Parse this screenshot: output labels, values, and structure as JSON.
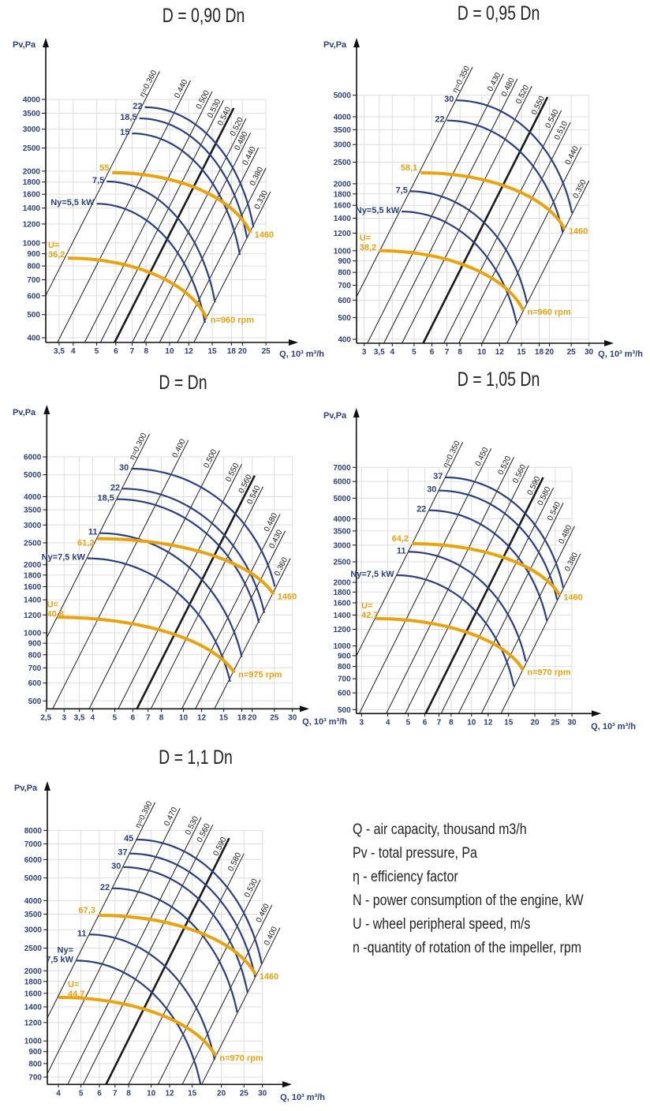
{
  "colors": {
    "power": "#2a3f80",
    "speed": "#eaa30e",
    "efficiency": "#1a1a1a",
    "tick_label": "#2d3f7a",
    "grid": "#dddddd",
    "axis": "#111111"
  },
  "legend": [
    "Q - air capacity, thousand m3/h",
    "Pv - total pressure, Pa",
    "η - efficiency factor",
    "N - power consumption of the engine, kW",
    "U - wheel peripheral speed, m/s",
    "n -quantity of rotation of the impeller, rpm"
  ],
  "chart_data": [
    {
      "type": "line",
      "title": "D = 0,90 Dn",
      "ylabel": "Pv,Pa",
      "xlabel": "Q, 10³ m³/h",
      "x_scale": "log",
      "y_scale": "log",
      "grid": true,
      "xlim": [
        3.5,
        25
      ],
      "ylim": [
        400,
        4000
      ],
      "x_ticks": [
        [
          3.5,
          "3,5"
        ],
        [
          4,
          "4"
        ],
        [
          5,
          "5"
        ],
        [
          6,
          "6"
        ],
        [
          7,
          "7"
        ],
        [
          8,
          "8"
        ],
        [
          10,
          "10"
        ],
        [
          12,
          "12"
        ],
        [
          15,
          "15"
        ],
        [
          18,
          "18"
        ],
        [
          20,
          "20"
        ],
        [
          25,
          "25"
        ]
      ],
      "y_ticks": [
        400,
        500,
        600,
        700,
        800,
        900,
        1000,
        1200,
        1400,
        1600,
        1800,
        2000,
        2500,
        3000,
        3500,
        4000
      ],
      "efficiency_lines": [
        {
          "label": "η=0.360",
          "top": [
            9.1,
            5250
          ]
        },
        {
          "label": "0.440",
          "top": [
            12.2,
            4800
          ]
        },
        {
          "label": "0.500",
          "top": [
            15.0,
            4320
          ]
        },
        {
          "label": "0.530",
          "top": [
            16.7,
            3970
          ]
        },
        {
          "label": "0.540",
          "top": [
            18.4,
            3680
          ],
          "bold": true
        },
        {
          "label": "0.520",
          "top": [
            20.7,
            3330
          ]
        },
        {
          "label": "0.480",
          "top": [
            21.6,
            2900
          ]
        },
        {
          "label": "0.440",
          "top": [
            23.3,
            2510
          ]
        },
        {
          "label": "0.380",
          "top": [
            25.0,
            2060
          ]
        },
        {
          "label": "0.330",
          "top": [
            26.1,
            1640
          ]
        }
      ],
      "power_curves": [
        {
          "label": [
            "Ny=5,5 kW"
          ],
          "from": [
            5.0,
            1460
          ],
          "to": [
            14.0,
            462
          ]
        },
        {
          "label": [
            "7,5"
          ],
          "from": [
            5.5,
            1810
          ],
          "to": [
            15.4,
            564
          ]
        },
        {
          "label": [
            "15"
          ],
          "from": [
            7.0,
            2880
          ],
          "to": [
            19.5,
            891
          ]
        },
        {
          "label": [
            "18,5"
          ],
          "from": [
            7.5,
            3330
          ],
          "to": [
            20.9,
            1045
          ]
        },
        {
          "label": [
            "22"
          ],
          "from": [
            7.9,
            3710
          ],
          "to": [
            22.2,
            1163
          ]
        }
      ],
      "speed_curves": [
        {
          "label": [
            "U=",
            "36,2"
          ],
          "rpm": "n=960 rpm",
          "from": [
            3.8,
            863
          ],
          "to": [
            14.2,
            484
          ]
        },
        {
          "label": [
            "55"
          ],
          "rpm": "1460",
          "from": [
            5.8,
            1970
          ],
          "to": [
            21.6,
            1102
          ]
        }
      ]
    },
    {
      "type": "line",
      "title": "D = 0,95 Dn",
      "ylabel": "Pv,Pa",
      "xlabel": "Q, 10³ m³/h",
      "x_scale": "log",
      "y_scale": "log",
      "grid": true,
      "xlim": [
        3,
        30
      ],
      "ylim": [
        400,
        5000
      ],
      "x_ticks": [
        [
          3,
          "3"
        ],
        [
          3.5,
          "3,5"
        ],
        [
          4,
          "4"
        ],
        [
          5,
          "5"
        ],
        [
          6,
          "6"
        ],
        [
          7,
          "7"
        ],
        [
          8,
          "8"
        ],
        [
          10,
          "10"
        ],
        [
          12,
          "12"
        ],
        [
          15,
          "15"
        ],
        [
          18,
          "18"
        ],
        [
          20,
          "20"
        ],
        [
          25,
          "25"
        ],
        [
          30,
          "30"
        ]
      ],
      "y_ticks": [
        400,
        500,
        600,
        700,
        800,
        900,
        1000,
        1200,
        1400,
        1600,
        1800,
        2000,
        2500,
        3000,
        3500,
        4000,
        5000
      ],
      "efficiency_lines": [
        {
          "label": "η=0.350",
          "top": [
            9.1,
            6690
          ]
        },
        {
          "label": "0.430",
          "top": [
            12.5,
            6250
          ]
        },
        {
          "label": "0.480",
          "top": [
            14.4,
            5920
          ]
        },
        {
          "label": "0.520",
          "top": [
            16.7,
            5490
          ]
        },
        {
          "label": "0.550",
          "top": [
            19.6,
            4900
          ],
          "bold": true
        },
        {
          "label": "0.540",
          "top": [
            22.6,
            4270
          ]
        },
        {
          "label": "0.510",
          "top": [
            24.8,
            3780
          ]
        },
        {
          "label": "0.440",
          "top": [
            27.7,
            2920
          ]
        },
        {
          "label": "0.350",
          "top": [
            30.0,
            2065
          ]
        }
      ],
      "power_curves": [
        {
          "label": [
            "Ny=5,5 kW"
          ],
          "from": [
            4.4,
            1500
          ],
          "to": [
            14.3,
            470
          ]
        },
        {
          "label": [
            "7,5"
          ],
          "from": [
            4.8,
            1850
          ],
          "to": [
            15.9,
            580
          ]
        },
        {
          "label": [
            "22"
          ],
          "from": [
            7.0,
            3850
          ],
          "to": [
            22.9,
            1210
          ]
        },
        {
          "label": [
            "30"
          ],
          "from": [
            7.7,
            4740
          ],
          "to": [
            25.2,
            1480
          ]
        }
      ],
      "speed_curves": [
        {
          "label": [
            "U=",
            "38,2"
          ],
          "rpm": "n=960 rpm",
          "from": [
            3.5,
            1000
          ],
          "to": [
            15.3,
            540
          ]
        },
        {
          "label": [
            "58,1"
          ],
          "rpm": "1460",
          "from": [
            5.35,
            2240
          ],
          "to": [
            23.4,
            1248
          ]
        }
      ]
    },
    {
      "type": "line",
      "title": "D = Dn",
      "ylabel": "Pv,Pa",
      "xlabel": "Q, 10³ m³/h",
      "x_scale": "log",
      "y_scale": "log",
      "grid": true,
      "xlim": [
        2.5,
        30
      ],
      "ylim": [
        500,
        6000
      ],
      "x_ticks": [
        [
          2.5,
          "2,5"
        ],
        [
          3,
          "3"
        ],
        [
          3.5,
          "3,5"
        ],
        [
          4,
          "4"
        ],
        [
          5,
          "5"
        ],
        [
          6,
          "6"
        ],
        [
          7,
          "7"
        ],
        [
          8,
          "8"
        ],
        [
          10,
          "10"
        ],
        [
          12,
          "12"
        ],
        [
          15,
          "15"
        ],
        [
          18,
          "18"
        ],
        [
          20,
          "20"
        ],
        [
          25,
          "25"
        ],
        [
          30,
          "30"
        ]
      ],
      "y_ticks": [
        500,
        600,
        700,
        800,
        900,
        1000,
        1200,
        1400,
        1600,
        1800,
        2000,
        2500,
        3000,
        3500,
        4000,
        5000,
        6000
      ],
      "efficiency_lines": [
        {
          "label": "η=0.300",
          "top": [
            7.1,
            7570
          ]
        },
        {
          "label": "0.400",
          "top": [
            10.5,
            7120
          ]
        },
        {
          "label": "0.500",
          "top": [
            14.4,
            6410
          ]
        },
        {
          "label": "0.550",
          "top": [
            18.0,
            5570
          ]
        },
        {
          "label": "0.560",
          "top": [
            20.5,
            4960
          ],
          "bold": true
        },
        {
          "label": "0.540",
          "top": [
            22.3,
            4430
          ]
        },
        {
          "label": "0.480",
          "top": [
            26.5,
            3350
          ]
        },
        {
          "label": "0.430",
          "top": [
            27.9,
            2825
          ]
        },
        {
          "label": "0.360",
          "top": [
            29.4,
            2135
          ]
        }
      ],
      "power_curves": [
        {
          "label": [
            "Ny=7,5 kW"
          ],
          "from": [
            3.8,
            2135
          ],
          "to": [
            16.0,
            608
          ]
        },
        {
          "label": [
            "11"
          ],
          "from": [
            4.3,
            2760
          ],
          "to": [
            18.0,
            782
          ]
        },
        {
          "label": [
            "18,5"
          ],
          "from": [
            5.1,
            3900
          ],
          "to": [
            21.4,
            1107
          ]
        },
        {
          "label": [
            "22"
          ],
          "from": [
            5.4,
            4340
          ],
          "to": [
            22.6,
            1225
          ]
        },
        {
          "label": [
            "30"
          ],
          "from": [
            5.9,
            5320
          ],
          "to": [
            25.1,
            1604
          ]
        }
      ],
      "speed_curves": [
        {
          "label": [
            "U=",
            "40,8"
          ],
          "rpm": "n=975 rpm",
          "from": [
            2.8,
            1172
          ],
          "to": [
            16.7,
            666
          ]
        },
        {
          "label": [
            "61,2"
          ],
          "rpm": "1460",
          "from": [
            4.2,
            2609
          ],
          "to": [
            24.8,
            1479
          ]
        }
      ]
    },
    {
      "type": "line",
      "title": "D = 1,05 Dn",
      "ylabel": "Pv,Pa",
      "xlabel": "Q, 10³ m³/h",
      "x_scale": "log",
      "y_scale": "log",
      "grid": true,
      "xlim": [
        3,
        30
      ],
      "ylim": [
        500,
        7000
      ],
      "x_ticks": [
        [
          3,
          "3"
        ],
        [
          4,
          "4"
        ],
        [
          5,
          "5"
        ],
        [
          6,
          "6"
        ],
        [
          7,
          "7"
        ],
        [
          8,
          "8"
        ],
        [
          10,
          "10"
        ],
        [
          12,
          "12"
        ],
        [
          15,
          "15"
        ],
        [
          20,
          "20"
        ],
        [
          25,
          "25"
        ],
        [
          30,
          "30"
        ]
      ],
      "y_ticks": [
        500,
        600,
        700,
        800,
        900,
        1000,
        1200,
        1400,
        1600,
        1800,
        2000,
        2500,
        3000,
        3500,
        4000,
        5000,
        6000,
        7000
      ],
      "efficiency_lines": [
        {
          "label": "η=0.350",
          "top": [
            9.1,
            9240
          ]
        },
        {
          "label": "0.450",
          "top": [
            12.4,
            8600
          ]
        },
        {
          "label": "0.520",
          "top": [
            15.9,
            7820
          ]
        },
        {
          "label": "0.560",
          "top": [
            18.7,
            7140
          ]
        },
        {
          "label": "0.590",
          "top": [
            21.9,
            6270
          ],
          "bold": true
        },
        {
          "label": "0.580",
          "top": [
            24.5,
            5600
          ]
        },
        {
          "label": "0.540",
          "top": [
            27.3,
            4750
          ]
        },
        {
          "label": "0.480",
          "top": [
            30.9,
            3690
          ]
        },
        {
          "label": "0.380",
          "top": [
            33.0,
            2733
          ]
        }
      ],
      "power_curves": [
        {
          "label": [
            "Ny=7,5 kW"
          ],
          "from": [
            4.4,
            2161
          ],
          "to": [
            15.9,
            643
          ]
        },
        {
          "label": [
            "11"
          ],
          "from": [
            5.0,
            2790
          ],
          "to": [
            18.1,
            845
          ]
        },
        {
          "label": [
            "22"
          ],
          "from": [
            6.25,
            4385
          ],
          "to": [
            22.8,
            1316
          ]
        },
        {
          "label": [
            "30"
          ],
          "from": [
            7.0,
            5435
          ],
          "to": [
            25.5,
            1656
          ]
        },
        {
          "label": [
            "37"
          ],
          "from": [
            7.5,
            6273
          ],
          "to": [
            27.3,
            1883
          ]
        }
      ],
      "speed_curves": [
        {
          "label": [
            "U=",
            "42,7"
          ],
          "rpm": "n=970 rpm",
          "from": [
            3.5,
            1347
          ],
          "to": [
            17.6,
            768
          ]
        },
        {
          "label": [
            "64,2"
          ],
          "rpm": "1460",
          "from": [
            5.2,
            3048
          ],
          "to": [
            26.2,
            1738
          ]
        }
      ]
    },
    {
      "type": "line",
      "title": "D = 1,1 Dn",
      "ylabel": "Pv,Pa",
      "xlabel": "Q, 10³ m³/h",
      "x_scale": "log",
      "y_scale": "log",
      "grid": true,
      "xlim": [
        4,
        30
      ],
      "ylim": [
        700,
        8000
      ],
      "x_ticks": [
        [
          4,
          "4"
        ],
        [
          5,
          "5"
        ],
        [
          6,
          "6"
        ],
        [
          7,
          "7"
        ],
        [
          8,
          "8"
        ],
        [
          10,
          "10"
        ],
        [
          12,
          "12"
        ],
        [
          15,
          "15"
        ],
        [
          20,
          "20"
        ],
        [
          25,
          "25"
        ],
        [
          30,
          "30"
        ]
      ],
      "y_ticks": [
        700,
        800,
        900,
        1000,
        1200,
        1400,
        1600,
        1800,
        2000,
        2500,
        3000,
        3500,
        4000,
        5000,
        6000,
        7000,
        8000
      ],
      "efficiency_lines": [
        {
          "label": "η=0.390",
          "top": [
            10.4,
            10560
          ]
        },
        {
          "label": "0.470",
          "top": [
            13.3,
            9950
          ]
        },
        {
          "label": "0.530",
          "top": [
            16.4,
            9110
          ]
        },
        {
          "label": "0.560",
          "top": [
            18.4,
            8470
          ]
        },
        {
          "label": "0.590",
          "top": [
            21.6,
            7410
          ],
          "bold": true
        },
        {
          "label": "0.580",
          "top": [
            25.0,
            6360
          ]
        },
        {
          "label": "0.530",
          "top": [
            29.4,
            4910
          ]
        },
        {
          "label": "0.460",
          "top": [
            33.0,
            3836
          ]
        },
        {
          "label": "0.400",
          "top": [
            35.7,
            3060
          ]
        }
      ],
      "power_curves": [
        {
          "label": [
            "Ny=",
            "7,5 kW"
          ],
          "from": [
            4.75,
            2212
          ],
          "to": [
            16.3,
            648
          ]
        },
        {
          "label": [
            "11"
          ],
          "from": [
            5.4,
            2862
          ],
          "to": [
            18.7,
            829
          ]
        },
        {
          "label": [
            "22"
          ],
          "from": [
            6.8,
            4515
          ],
          "to": [
            23.4,
            1323
          ]
        },
        {
          "label": [
            "30"
          ],
          "from": [
            7.6,
            5566
          ],
          "to": [
            25.9,
            1615
          ]
        },
        {
          "label": [
            "37"
          ],
          "from": [
            8.1,
            6365
          ],
          "to": [
            27.9,
            1880
          ]
        },
        {
          "label": [
            "45"
          ],
          "from": [
            8.6,
            7308
          ],
          "to": [
            29.8,
            2138
          ]
        }
      ],
      "speed_curves": [
        {
          "label": [
            "U=",
            "44,7"
          ],
          "rpm": "n=970 rpm",
          "from": [
            4.0,
            1538
          ],
          "to": [
            18.9,
            862
          ]
        },
        {
          "label": [
            "67,3"
          ],
          "rpm": "1460",
          "from": [
            5.95,
            3458
          ],
          "to": [
            28.0,
            1928
          ]
        }
      ]
    }
  ]
}
